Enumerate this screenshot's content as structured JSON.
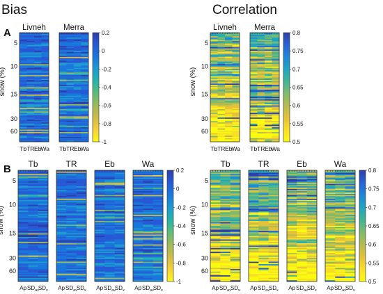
{
  "section_titles": {
    "bias": "Bias",
    "correlation": "Correlation"
  },
  "panel_letters": {
    "a": "A",
    "b": "B"
  },
  "colors": {
    "bias_scale": [
      "#f9f91a",
      "#f5d13a",
      "#cfbb4a",
      "#9fba5a",
      "#5ebc78",
      "#26b4a8",
      "#1e9bd0",
      "#1977dc",
      "#2759d6",
      "#2e3ea8"
    ],
    "corr_scale": [
      "#fafa0e",
      "#f9de26",
      "#e4c13a",
      "#b4bb4f",
      "#7fbb6b",
      "#3fb593",
      "#1fa5c3",
      "#1e86d8",
      "#2862d8",
      "#2e3fa8"
    ],
    "frame": "#2a2a2a"
  },
  "chart_data": [
    {
      "type": "heatmap",
      "section": "Bias",
      "panel": "A",
      "subplots": [
        "Livneh",
        "Merra"
      ],
      "xlabels": [
        "Tb",
        "TR",
        "Eb",
        "Wa"
      ],
      "ylabel": "snow (%)",
      "yticks": [
        5,
        10,
        15,
        30,
        60
      ],
      "colorbar": {
        "min": -1,
        "max": 0.2,
        "ticks": [
          "0.2",
          "0",
          "-0.2",
          "-0.4",
          "-0.6",
          "-0.8",
          "-1"
        ]
      }
    },
    {
      "type": "heatmap",
      "section": "Correlation",
      "panel": "A",
      "subplots": [
        "Livneh",
        "Merra"
      ],
      "xlabels": [
        "Tb",
        "TR",
        "Eb",
        "Wa"
      ],
      "ylabel": "snow (%)",
      "yticks": [
        5,
        10,
        15,
        30,
        60
      ],
      "colorbar": {
        "min": 0.5,
        "max": 0.8,
        "ticks": [
          "0.8",
          "0.75",
          "0.7",
          "0.65",
          "0.6",
          "0.55",
          "0.5"
        ]
      }
    },
    {
      "type": "heatmap",
      "section": "Bias",
      "panel": "B",
      "subplots": [
        "Tb",
        "TR",
        "Eb",
        "Wa"
      ],
      "xlabels": [
        {
          "base": "Ap",
          "sub": ""
        },
        {
          "base": "SD",
          "sub": "av"
        },
        {
          "base": "SD",
          "sub": "x"
        }
      ],
      "ylabel": "snow (%)",
      "yticks": [
        5,
        10,
        15,
        30,
        60
      ],
      "colorbar": {
        "min": -1,
        "max": 0.2,
        "ticks": [
          "0.2",
          "0",
          "-0.2",
          "-0.4",
          "-0.6",
          "-0.8",
          "-1"
        ]
      }
    },
    {
      "type": "heatmap",
      "section": "Correlation",
      "panel": "B",
      "subplots": [
        "Tb",
        "TR",
        "Eb",
        "Wa"
      ],
      "xlabels": [
        {
          "base": "Ap",
          "sub": ""
        },
        {
          "base": "SD",
          "sub": "av"
        },
        {
          "base": "SD",
          "sub": "x"
        }
      ],
      "ylabel": "snow (%)",
      "yticks": [
        5,
        10,
        15,
        30,
        60
      ],
      "colorbar": {
        "min": 0.5,
        "max": 0.8,
        "ticks": [
          "0.8",
          "0.75",
          "0.7",
          "0.65",
          "0.6",
          "0.55",
          "0.5"
        ]
      }
    }
  ]
}
